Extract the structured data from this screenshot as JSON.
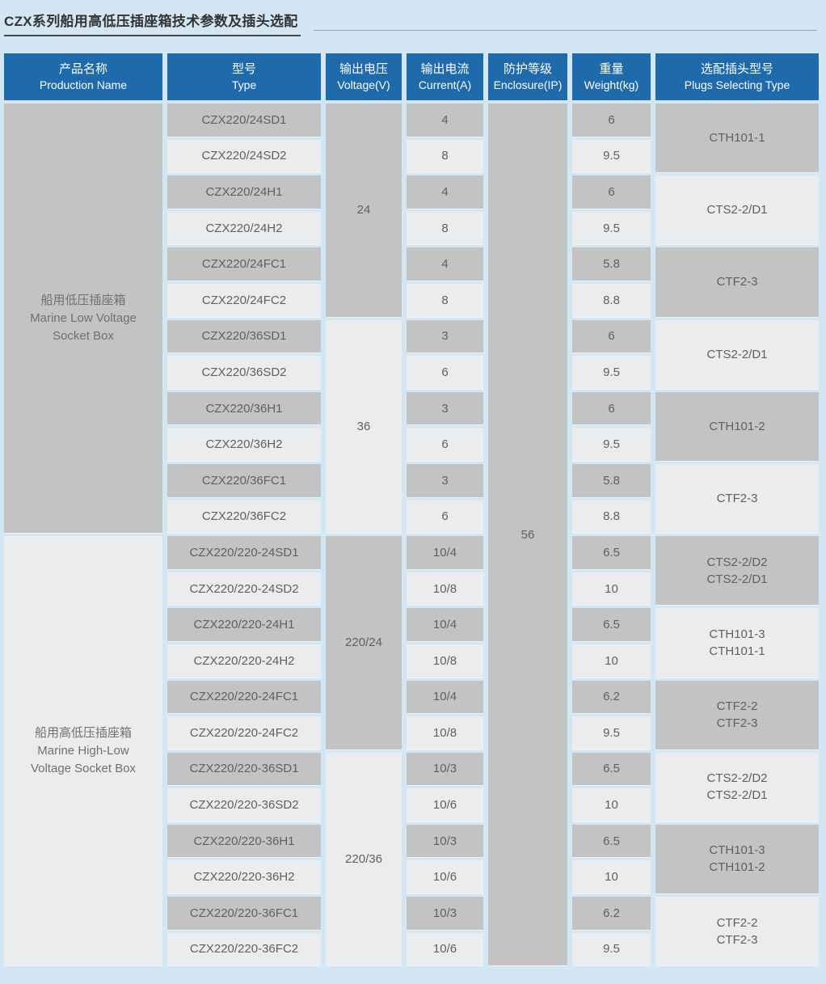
{
  "page": {
    "title": "CZX系列船用高低压插座箱技术参数及插头选配",
    "colors": {
      "background": "#d3e6f3",
      "header_blue": "#1e6aab",
      "cell_dark": "#c4c3c3",
      "cell_light": "#ebeced",
      "header_text": "#ffffff",
      "cell_text": "#5e6063",
      "title_text": "#333333"
    }
  },
  "table": {
    "headers": [
      {
        "zh": "产品名称",
        "en": "Production Name"
      },
      {
        "zh": "型号",
        "en": "Type"
      },
      {
        "zh": "输出电压",
        "en": "Voltage(V)"
      },
      {
        "zh": "输出电流",
        "en": "Current(A)"
      },
      {
        "zh": "防护等级",
        "en": "Enclosure(IP)"
      },
      {
        "zh": "重量",
        "en": "Weight(kg)"
      },
      {
        "zh": "选配插头型号",
        "en": "Plugs Selecting Type"
      }
    ],
    "products": [
      {
        "zh": "船用低压插座箱",
        "en": "Marine Low Voltage\nSocket Box"
      },
      {
        "zh": "船用高低压插座箱",
        "en": "Marine High-Low\nVoltage Socket Box"
      }
    ],
    "voltage_groups": [
      "24",
      "36",
      "220/24",
      "220/36"
    ],
    "enclosure_ip": "56",
    "plug_groups": [
      "CTH101-1",
      "CTS2-2/D1",
      "CTF2-3",
      "CTS2-2/D1",
      "CTH101-2",
      "CTF2-3",
      "CTS2-2/D2\nCTS2-2/D1",
      "CTH101-3\nCTH101-1",
      "CTF2-2\nCTF2-3",
      "CTS2-2/D2\nCTS2-2/D1",
      "CTH101-3\nCTH101-2",
      "CTF2-2\nCTF2-3"
    ],
    "rows": [
      {
        "type": "CZX220/24SD1",
        "current": "4",
        "weight": "6"
      },
      {
        "type": "CZX220/24SD2",
        "current": "8",
        "weight": "9.5"
      },
      {
        "type": "CZX220/24H1",
        "current": "4",
        "weight": "6"
      },
      {
        "type": "CZX220/24H2",
        "current": "8",
        "weight": "9.5"
      },
      {
        "type": "CZX220/24FC1",
        "current": "4",
        "weight": "5.8"
      },
      {
        "type": "CZX220/24FC2",
        "current": "8",
        "weight": "8.8"
      },
      {
        "type": "CZX220/36SD1",
        "current": "3",
        "weight": "6"
      },
      {
        "type": "CZX220/36SD2",
        "current": "6",
        "weight": "9.5"
      },
      {
        "type": "CZX220/36H1",
        "current": "3",
        "weight": "6"
      },
      {
        "type": "CZX220/36H2",
        "current": "6",
        "weight": "9.5"
      },
      {
        "type": "CZX220/36FC1",
        "current": "3",
        "weight": "5.8"
      },
      {
        "type": "CZX220/36FC2",
        "current": "6",
        "weight": "8.8"
      },
      {
        "type": "CZX220/220-24SD1",
        "current": "10/4",
        "weight": "6.5"
      },
      {
        "type": "CZX220/220-24SD2",
        "current": "10/8",
        "weight": "10"
      },
      {
        "type": "CZX220/220-24H1",
        "current": "10/4",
        "weight": "6.5"
      },
      {
        "type": "CZX220/220-24H2",
        "current": "10/8",
        "weight": "10"
      },
      {
        "type": "CZX220/220-24FC1",
        "current": "10/4",
        "weight": "6.2"
      },
      {
        "type": "CZX220/220-24FC2",
        "current": "10/8",
        "weight": "9.5"
      },
      {
        "type": "CZX220/220-36SD1",
        "current": "10/3",
        "weight": "6.5"
      },
      {
        "type": "CZX220/220-36SD2",
        "current": "10/6",
        "weight": "10"
      },
      {
        "type": "CZX220/220-36H1",
        "current": "10/3",
        "weight": "6.5"
      },
      {
        "type": "CZX220/220-36H2",
        "current": "10/6",
        "weight": "10"
      },
      {
        "type": "CZX220/220-36FC1",
        "current": "10/3",
        "weight": "6.2"
      },
      {
        "type": "CZX220/220-36FC2",
        "current": "10/6",
        "weight": "9.5"
      }
    ]
  }
}
